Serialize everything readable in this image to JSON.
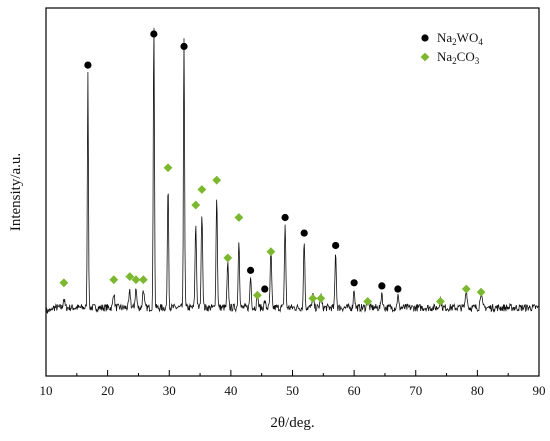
{
  "chart_data": {
    "type": "line",
    "title": "",
    "xlabel": "2θ/deg.",
    "ylabel": "Intensity/a.u.",
    "xlim": [
      10,
      90
    ],
    "ylim": [
      0,
      1
    ],
    "x_ticks": [
      "10",
      "20",
      "30",
      "40",
      "50",
      "60",
      "70",
      "80",
      "90"
    ],
    "y_ticks_shown": false,
    "grid": false,
    "legend": {
      "placement": "top-right",
      "entries": [
        {
          "marker": "circle",
          "color": "#000000",
          "formula": [
            {
              "t": "Na"
            },
            {
              "t": "2",
              "sub": true
            },
            {
              "t": "WO"
            },
            {
              "t": "4",
              "sub": true
            }
          ]
        },
        {
          "marker": "diamond",
          "color": "#7cb82f",
          "formula": [
            {
              "t": "Na"
            },
            {
              "t": "2",
              "sub": true
            },
            {
              "t": "CO"
            },
            {
              "t": "3",
              "sub": true
            }
          ]
        }
      ]
    },
    "baseline": 0.12,
    "noise_amplitude": 0.012,
    "peaks": [
      {
        "x": 12.9,
        "h": 0.03,
        "w": 0.18
      },
      {
        "x": 16.8,
        "h": 0.76,
        "w": 0.12
      },
      {
        "x": 21.0,
        "h": 0.05,
        "w": 0.18
      },
      {
        "x": 23.6,
        "h": 0.05,
        "w": 0.18
      },
      {
        "x": 24.6,
        "h": 0.06,
        "w": 0.18
      },
      {
        "x": 25.8,
        "h": 0.06,
        "w": 0.18
      },
      {
        "x": 27.5,
        "h": 0.93,
        "w": 0.13
      },
      {
        "x": 29.8,
        "h": 0.4,
        "w": 0.14
      },
      {
        "x": 32.4,
        "h": 0.87,
        "w": 0.13
      },
      {
        "x": 34.3,
        "h": 0.27,
        "w": 0.16
      },
      {
        "x": 35.3,
        "h": 0.31,
        "w": 0.16
      },
      {
        "x": 37.7,
        "h": 0.36,
        "w": 0.15
      },
      {
        "x": 39.5,
        "h": 0.14,
        "w": 0.16
      },
      {
        "x": 41.3,
        "h": 0.22,
        "w": 0.16
      },
      {
        "x": 43.2,
        "h": 0.1,
        "w": 0.16
      },
      {
        "x": 44.3,
        "h": 0.05,
        "w": 0.16
      },
      {
        "x": 45.5,
        "h": 0.02,
        "w": 0.16
      },
      {
        "x": 46.5,
        "h": 0.18,
        "w": 0.16
      },
      {
        "x": 48.8,
        "h": 0.27,
        "w": 0.15
      },
      {
        "x": 51.9,
        "h": 0.22,
        "w": 0.15
      },
      {
        "x": 53.3,
        "h": 0.04,
        "w": 0.18
      },
      {
        "x": 54.6,
        "h": 0.04,
        "w": 0.18
      },
      {
        "x": 57.0,
        "h": 0.18,
        "w": 0.15
      },
      {
        "x": 60.0,
        "h": 0.06,
        "w": 0.16
      },
      {
        "x": 62.2,
        "h": 0.03,
        "w": 0.18
      },
      {
        "x": 64.5,
        "h": 0.05,
        "w": 0.16
      },
      {
        "x": 67.1,
        "h": 0.04,
        "w": 0.16
      },
      {
        "x": 74.0,
        "h": 0.03,
        "w": 0.2
      },
      {
        "x": 78.2,
        "h": 0.06,
        "w": 0.2
      },
      {
        "x": 80.6,
        "h": 0.05,
        "w": 0.2
      }
    ],
    "series": [
      {
        "label_key": 0,
        "marker": "circle",
        "color": "#000000",
        "points": [
          {
            "x": 16.8,
            "y": 0.9
          },
          {
            "x": 27.5,
            "y": 1.0
          },
          {
            "x": 32.4,
            "y": 0.96
          },
          {
            "x": 43.2,
            "y": 0.24
          },
          {
            "x": 45.5,
            "y": 0.18
          },
          {
            "x": 48.8,
            "y": 0.41
          },
          {
            "x": 51.9,
            "y": 0.36
          },
          {
            "x": 57.0,
            "y": 0.32
          },
          {
            "x": 60.0,
            "y": 0.2
          },
          {
            "x": 64.5,
            "y": 0.19
          },
          {
            "x": 67.1,
            "y": 0.18
          }
        ]
      },
      {
        "label_key": 1,
        "marker": "diamond",
        "color": "#7cb82f",
        "points": [
          {
            "x": 12.9,
            "y": 0.2
          },
          {
            "x": 21.0,
            "y": 0.21
          },
          {
            "x": 23.6,
            "y": 0.22
          },
          {
            "x": 24.6,
            "y": 0.21
          },
          {
            "x": 25.8,
            "y": 0.21
          },
          {
            "x": 29.8,
            "y": 0.57
          },
          {
            "x": 34.3,
            "y": 0.45
          },
          {
            "x": 35.3,
            "y": 0.5
          },
          {
            "x": 37.7,
            "y": 0.53
          },
          {
            "x": 39.5,
            "y": 0.28
          },
          {
            "x": 41.3,
            "y": 0.41
          },
          {
            "x": 44.3,
            "y": 0.16
          },
          {
            "x": 46.5,
            "y": 0.3
          },
          {
            "x": 53.3,
            "y": 0.15
          },
          {
            "x": 54.6,
            "y": 0.15
          },
          {
            "x": 62.2,
            "y": 0.14
          },
          {
            "x": 74.0,
            "y": 0.14
          },
          {
            "x": 78.2,
            "y": 0.18
          },
          {
            "x": 80.6,
            "y": 0.17
          }
        ]
      }
    ]
  }
}
